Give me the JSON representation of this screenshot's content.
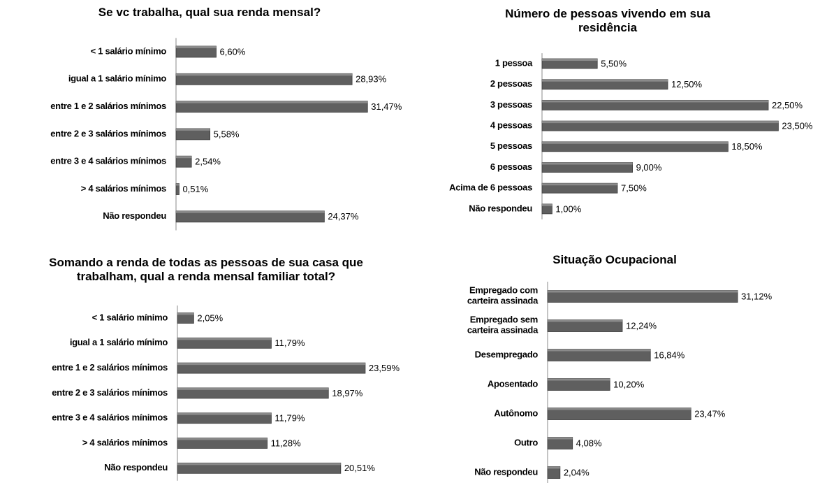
{
  "chart_data": [
    {
      "type": "bar",
      "orientation": "horizontal",
      "title": "Se vc trabalha, qual sua renda mensal?",
      "categories": [
        "< 1 salário mínimo",
        "igual a 1 salário mínimo",
        "entre 1  e 2 salários mínimos",
        "entre 2 e 3 salários mínimos",
        "entre 3 e 4 salários mínimos",
        "> 4 salários mínimos",
        "Não respondeu"
      ],
      "values": [
        6.6,
        28.93,
        31.47,
        5.58,
        2.54,
        0.51,
        24.37
      ],
      "value_labels": [
        "6,60%",
        "28,93%",
        "31,47%",
        "5,58%",
        "2,54%",
        "0,51%",
        "24,37%"
      ],
      "color": "#5f5f5f",
      "xlim": [
        0,
        35
      ]
    },
    {
      "type": "bar",
      "orientation": "horizontal",
      "title": "Número de pessoas vivendo em sua residência",
      "categories": [
        "1 pessoa",
        "2 pessoas",
        "3 pessoas",
        "4 pessoas",
        "5 pessoas",
        "6 pessoas",
        "Acima de 6 pessoas",
        "Não respondeu"
      ],
      "values": [
        5.5,
        12.5,
        22.5,
        23.5,
        18.5,
        9.0,
        7.5,
        1.0
      ],
      "value_labels": [
        "5,50%",
        "12,50%",
        "22,50%",
        "23,50%",
        "18,50%",
        "9,00%",
        "7,50%",
        "1,00%"
      ],
      "color": "#5f5f5f",
      "xlim": [
        0,
        25
      ]
    },
    {
      "type": "bar",
      "orientation": "horizontal",
      "title": "Somando a renda de todas as pessoas de sua casa que trabalham, qual a renda mensal familiar total?",
      "categories": [
        "< 1 salário mínimo",
        "igual a 1 salário mínimo",
        "entre 1  e 2 salários mínimos",
        "entre 2 e 3 salários mínimos",
        "entre 3 e 4 salários mínimos",
        "> 4 salários mínimos",
        "Não respondeu"
      ],
      "values": [
        2.05,
        11.79,
        23.59,
        18.97,
        11.79,
        11.28,
        20.51
      ],
      "value_labels": [
        "2,05%",
        "11,79%",
        "23,59%",
        "18,97%",
        "11,79%",
        "11,28%",
        "20,51%"
      ],
      "color": "#5f5f5f",
      "xlim": [
        0,
        30
      ]
    },
    {
      "type": "bar",
      "orientation": "horizontal",
      "title": "Situação Ocupacional",
      "categories": [
        "Empregado com\ncarteira assinada",
        "Empregado sem\ncarteira assinada",
        "Desempregado",
        "Aposentado",
        "Autônomo",
        "Outro",
        "Não respondeu"
      ],
      "values": [
        31.12,
        12.24,
        16.84,
        10.2,
        23.47,
        4.08,
        2.04
      ],
      "value_labels": [
        "31,12%",
        "12,24%",
        "16,84%",
        "10,20%",
        "23,47%",
        "4,08%",
        "2,04%"
      ],
      "color": "#5f5f5f",
      "xlim": [
        0,
        35
      ]
    }
  ]
}
